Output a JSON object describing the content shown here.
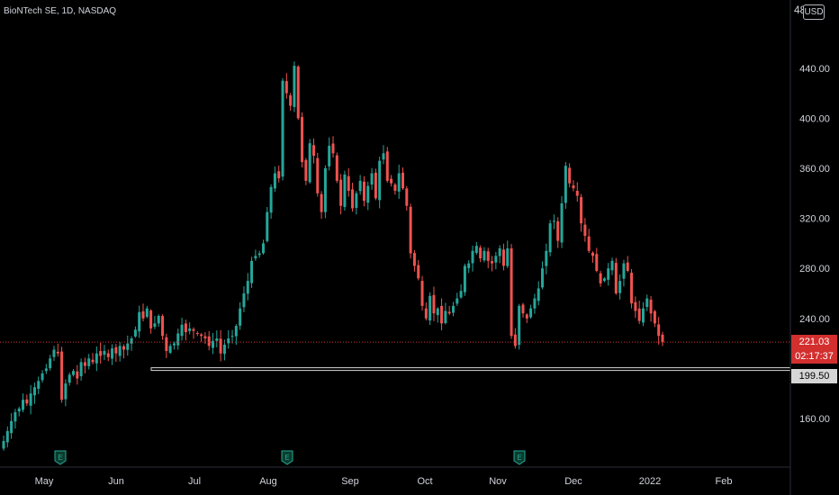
{
  "header": {
    "title": "BioNTech SE, 1D, NASDAQ"
  },
  "toolbar": {
    "currency_label": "USD",
    "top_tick_partial": "48"
  },
  "price_axis": {
    "last_price": "221.03",
    "countdown": "02:17:37",
    "level_price": "199.50"
  },
  "colors": {
    "up": "#26a69a",
    "down": "#ef5350",
    "background": "#000000",
    "last_price": "#d32f2f",
    "level": "#d6d6d6"
  },
  "chart_data": {
    "type": "candlestick",
    "y_range": [
      120,
      480
    ],
    "y_ticks": [
      160,
      200,
      240,
      280,
      320,
      360,
      400,
      440
    ],
    "y_tick_labels": [
      "160.00",
      "240.00",
      "280.00",
      "320.00",
      "360.00",
      "400.00",
      "440.00"
    ],
    "x_tick_labels": [
      "May",
      "Jun",
      "Jul",
      "Aug",
      "Sep",
      "Oct",
      "Nov",
      "Dec",
      "2022",
      "Feb"
    ],
    "last_price": 221.03,
    "horizontal_level": 199.5,
    "earnings_markers": [
      "May",
      "Aug",
      "Nov"
    ],
    "earnings_marker_label": "E",
    "closes": [
      142,
      150,
      158,
      165,
      168,
      175,
      172,
      180,
      185,
      190,
      196,
      200,
      208,
      215,
      212,
      175,
      188,
      195,
      198,
      192,
      205,
      202,
      208,
      205,
      212,
      210,
      214,
      209,
      216,
      212,
      218,
      215,
      220,
      224,
      231,
      245,
      240,
      248,
      232,
      236,
      242,
      226,
      214,
      218,
      220,
      228,
      235,
      229,
      232,
      230,
      228,
      226,
      224,
      218,
      222,
      224,
      212,
      219,
      224,
      226,
      234,
      248,
      260,
      270,
      286,
      290,
      292,
      300,
      325,
      345,
      356,
      352,
      430,
      420,
      410,
      442,
      400,
      365,
      350,
      380,
      370,
      340,
      325,
      360,
      378,
      372,
      350,
      330,
      355,
      342,
      328,
      340,
      350,
      334,
      346,
      356,
      336,
      366,
      372,
      350,
      348,
      342,
      356,
      344,
      330,
      292,
      282,
      272,
      250,
      240,
      258,
      244,
      248,
      236,
      246,
      244,
      250,
      256,
      262,
      282,
      284,
      294,
      298,
      288,
      294,
      286,
      284,
      290,
      296,
      282,
      296,
      226,
      218,
      250,
      244,
      240,
      248,
      256,
      264,
      280,
      294,
      316,
      318,
      302,
      332,
      362,
      348,
      344,
      338,
      316,
      306,
      294,
      290,
      278,
      268,
      272,
      280,
      286,
      260,
      270,
      284,
      278,
      252,
      246,
      238,
      248,
      256,
      244,
      236,
      226,
      221
    ]
  }
}
